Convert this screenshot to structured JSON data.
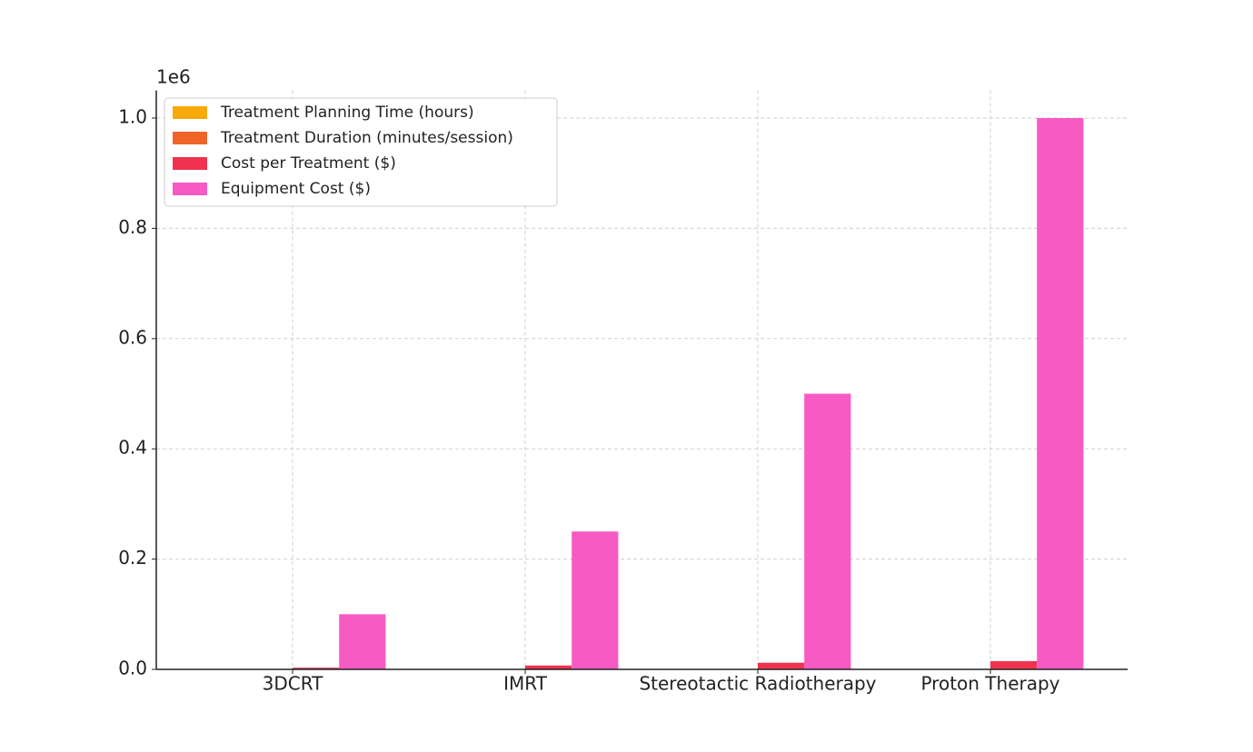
{
  "chart_data": {
    "type": "bar",
    "y_offset_label": "1e6",
    "categories": [
      "3DCRT",
      "IMRT",
      "Stereotactic Radiotherapy",
      "Proton Therapy"
    ],
    "series": [
      {
        "name": "Treatment Planning Time (hours)",
        "color": "#f7aa0a",
        "values": [
          0,
          0,
          0,
          0
        ]
      },
      {
        "name": "Treatment Duration (minutes/session)",
        "color": "#f0642a",
        "values": [
          0,
          0,
          0,
          0
        ]
      },
      {
        "name": "Cost per Treatment ($)",
        "color": "#f0324f",
        "values": [
          0.003,
          0.007,
          0.012,
          0.015
        ]
      },
      {
        "name": "Equipment Cost ($)",
        "color": "#f75ac2",
        "values": [
          0.1,
          0.25,
          0.5,
          1.0
        ]
      }
    ],
    "ylim": [
      0,
      1.05
    ],
    "yticks": [
      {
        "value": 0,
        "label": "0.0"
      },
      0.2,
      0.4,
      0.6,
      0.8,
      {
        "value": 1,
        "label": "1.0"
      }
    ],
    "grid": true,
    "legend": "upper left"
  }
}
